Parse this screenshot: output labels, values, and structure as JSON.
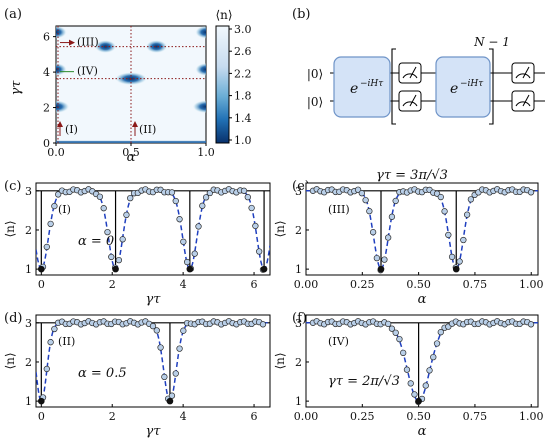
{
  "chart_data": [
    {
      "panel": "(a)",
      "type": "heatmap",
      "xlabel": "α",
      "ylabel": "γτ",
      "xlim": [
        0,
        1
      ],
      "ylim": [
        0,
        6.6
      ],
      "xticks": [
        "0.0",
        "0.5",
        "1.0"
      ],
      "yticks": [
        "0",
        "2",
        "4",
        "6"
      ],
      "colorbar": {
        "label": "⟨n⟩",
        "range": [
          1.0,
          3.0
        ],
        "ticks": [
          "3.0",
          "2.6",
          "2.2",
          "1.8",
          "1.4",
          "1.0"
        ]
      },
      "colors": {
        "high": "#f2f8fd",
        "low": "#08306b"
      },
      "dark_spots": [
        {
          "alpha": 0.0,
          "gt": 2.05,
          "width": 0.1
        },
        {
          "alpha": 1.0,
          "gt": 2.05,
          "width": 0.1
        },
        {
          "alpha": 0.5,
          "gt": 3.63,
          "width": 0.12
        },
        {
          "alpha": 0.0,
          "gt": 4.15,
          "width": 0.08
        },
        {
          "alpha": 1.0,
          "gt": 4.15,
          "width": 0.08
        },
        {
          "alpha": 0.33,
          "gt": 5.44,
          "width": 0.08
        },
        {
          "alpha": 0.67,
          "gt": 5.44,
          "width": 0.08
        },
        {
          "alpha": 0.0,
          "gt": 6.25,
          "width": 0.08
        },
        {
          "alpha": 1.0,
          "gt": 6.25,
          "width": 0.08
        }
      ],
      "markers": [
        {
          "label": "(I)",
          "alpha": 0.0,
          "direction": "vertical"
        },
        {
          "label": "(II)",
          "alpha": 0.5,
          "direction": "vertical"
        },
        {
          "label": "(III)",
          "gt": 5.44,
          "direction": "horizontal"
        },
        {
          "label": "(IV)",
          "gt": 3.63,
          "direction": "horizontal"
        }
      ]
    },
    {
      "panel": "(c)",
      "type": "line",
      "label": "(I)",
      "annotation": "α = 0",
      "xlabel": "γτ",
      "ylabel": "⟨n⟩",
      "xlim": [
        -0.15,
        6.45
      ],
      "ylim": [
        0.85,
        3.2
      ],
      "xticks": [
        0,
        2,
        4,
        6
      ],
      "yticks": [
        1,
        2,
        3
      ],
      "dips": [
        0,
        2.094,
        4.189,
        6.283
      ],
      "theory": "dashed blue line",
      "exact": "solid black line",
      "data": "open circles"
    },
    {
      "panel": "(d)",
      "type": "line",
      "label": "(II)",
      "annotation": "α = 0.5",
      "xlabel": "γτ",
      "ylabel": "⟨n⟩",
      "xlim": [
        -0.15,
        6.45
      ],
      "ylim": [
        0.85,
        3.2
      ],
      "xticks": [
        0,
        2,
        4,
        6
      ],
      "yticks": [
        1,
        2,
        3
      ],
      "dips": [
        0,
        3.628
      ]
    },
    {
      "panel": "(e)",
      "type": "line",
      "label": "(III)",
      "title": "γτ = 3π/√3",
      "xlabel": "α",
      "ylabel": "⟨n⟩",
      "xlim": [
        0,
        1.03
      ],
      "ylim": [
        0.85,
        3.2
      ],
      "xticks": [
        "0.00",
        "0.25",
        "0.50",
        "0.75",
        "1.00"
      ],
      "yticks": [
        1,
        2,
        3
      ],
      "dips": [
        0.333,
        0.667
      ]
    },
    {
      "panel": "(f)",
      "type": "line",
      "label": "(IV)",
      "annotation": "γτ = 2π/√3",
      "xlabel": "α",
      "ylabel": "⟨n⟩",
      "xlim": [
        0,
        1.03
      ],
      "ylim": [
        0.85,
        3.2
      ],
      "xticks": [
        "0.00",
        "0.25",
        "0.50",
        "0.75",
        "1.00"
      ],
      "yticks": [
        1,
        2,
        3
      ],
      "dips": [
        0.5
      ]
    }
  ],
  "circuit": {
    "panel": "(b)",
    "inputs": [
      "|0⟩",
      "|0⟩"
    ],
    "gate_label": "e",
    "gate_exp": "−iHτ",
    "repeat_label": "N − 1"
  },
  "style": {
    "theory_color": "#1f3fbf",
    "marker_fill": "#b9cfe8",
    "label_color": "#8b1a1a",
    "gate_fill": "#d4e3f7",
    "gate_edge": "#6f94c8"
  }
}
